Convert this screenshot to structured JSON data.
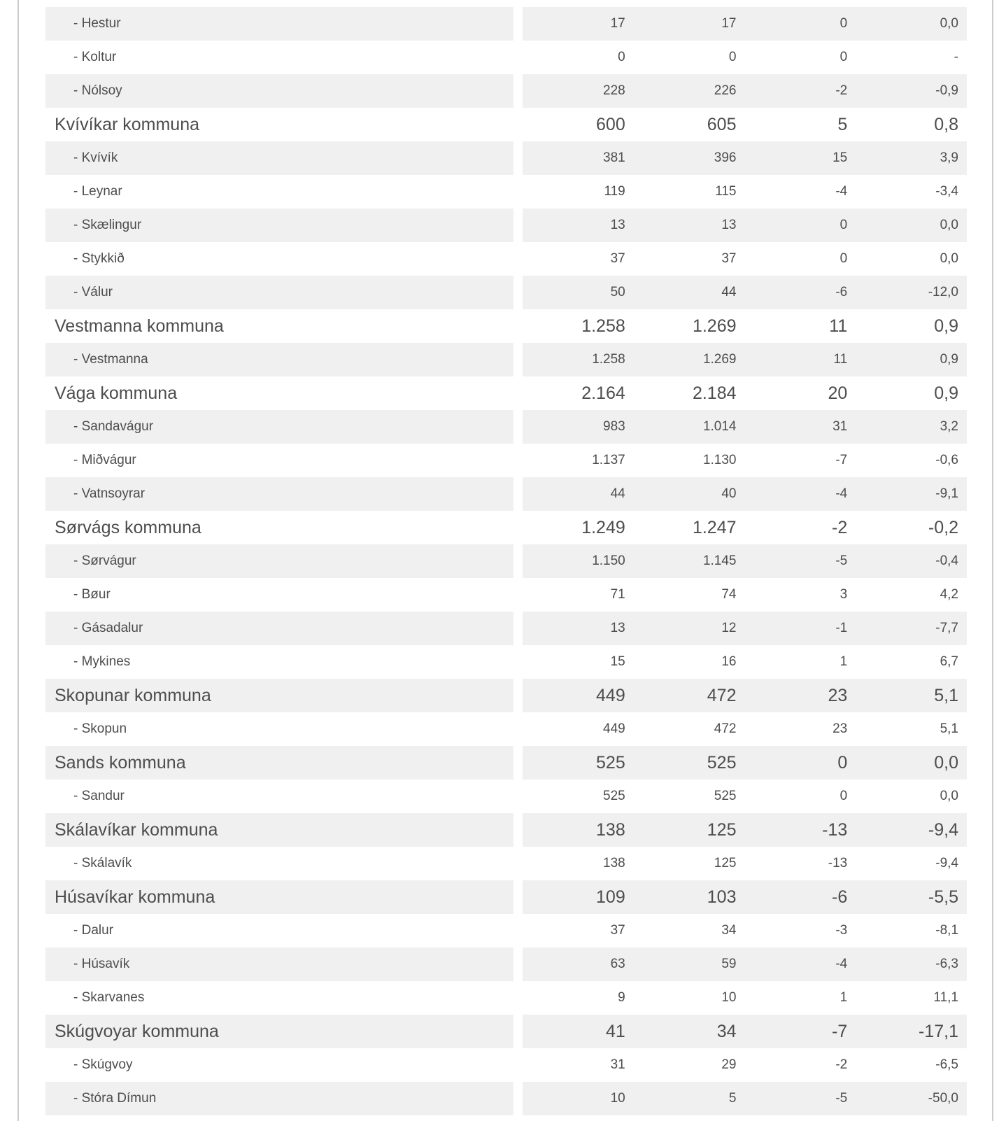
{
  "colors": {
    "row_alt": "#f0f0f0",
    "text": "#4d4d4d",
    "border": "#cccccc"
  },
  "table": {
    "rows": [
      {
        "label": "- Hestur",
        "level": "village",
        "values": [
          "17",
          "17",
          "0",
          "0,0"
        ]
      },
      {
        "label": "- Koltur",
        "level": "village",
        "values": [
          "0",
          "0",
          "0",
          "-"
        ]
      },
      {
        "label": "- Nólsoy",
        "level": "village",
        "values": [
          "228",
          "226",
          "-2",
          "-0,9"
        ]
      },
      {
        "label": "Kvívíkar kommuna",
        "level": "municipality",
        "values": [
          "600",
          "605",
          "5",
          "0,8"
        ]
      },
      {
        "label": "- Kvívík",
        "level": "village",
        "values": [
          "381",
          "396",
          "15",
          "3,9"
        ]
      },
      {
        "label": "- Leynar",
        "level": "village",
        "values": [
          "119",
          "115",
          "-4",
          "-3,4"
        ]
      },
      {
        "label": "- Skælingur",
        "level": "village",
        "values": [
          "13",
          "13",
          "0",
          "0,0"
        ]
      },
      {
        "label": "- Stykkið",
        "level": "village",
        "values": [
          "37",
          "37",
          "0",
          "0,0"
        ]
      },
      {
        "label": "- Válur",
        "level": "village",
        "values": [
          "50",
          "44",
          "-6",
          "-12,0"
        ]
      },
      {
        "label": "Vestmanna kommuna",
        "level": "municipality",
        "values": [
          "1.258",
          "1.269",
          "11",
          "0,9"
        ]
      },
      {
        "label": "- Vestmanna",
        "level": "village",
        "values": [
          "1.258",
          "1.269",
          "11",
          "0,9"
        ]
      },
      {
        "label": "Vága kommuna",
        "level": "municipality",
        "values": [
          "2.164",
          "2.184",
          "20",
          "0,9"
        ]
      },
      {
        "label": "- Sandavágur",
        "level": "village",
        "values": [
          "983",
          "1.014",
          "31",
          "3,2"
        ]
      },
      {
        "label": "- Miðvágur",
        "level": "village",
        "values": [
          "1.137",
          "1.130",
          "-7",
          "-0,6"
        ]
      },
      {
        "label": "- Vatnsoyrar",
        "level": "village",
        "values": [
          "44",
          "40",
          "-4",
          "-9,1"
        ]
      },
      {
        "label": "Sørvágs kommuna",
        "level": "municipality",
        "values": [
          "1.249",
          "1.247",
          "-2",
          "-0,2"
        ]
      },
      {
        "label": "- Sørvágur",
        "level": "village",
        "values": [
          "1.150",
          "1.145",
          "-5",
          "-0,4"
        ]
      },
      {
        "label": "- Bøur",
        "level": "village",
        "values": [
          "71",
          "74",
          "3",
          "4,2"
        ]
      },
      {
        "label": "- Gásadalur",
        "level": "village",
        "values": [
          "13",
          "12",
          "-1",
          "-7,7"
        ]
      },
      {
        "label": "- Mykines",
        "level": "village",
        "values": [
          "15",
          "16",
          "1",
          "6,7"
        ]
      },
      {
        "label": "Skopunar kommuna",
        "level": "municipality",
        "values": [
          "449",
          "472",
          "23",
          "5,1"
        ]
      },
      {
        "label": "- Skopun",
        "level": "village",
        "values": [
          "449",
          "472",
          "23",
          "5,1"
        ]
      },
      {
        "label": "Sands kommuna",
        "level": "municipality",
        "values": [
          "525",
          "525",
          "0",
          "0,0"
        ]
      },
      {
        "label": "- Sandur",
        "level": "village",
        "values": [
          "525",
          "525",
          "0",
          "0,0"
        ]
      },
      {
        "label": "Skálavíkar kommuna",
        "level": "municipality",
        "values": [
          "138",
          "125",
          "-13",
          "-9,4"
        ]
      },
      {
        "label": "- Skálavík",
        "level": "village",
        "values": [
          "138",
          "125",
          "-13",
          "-9,4"
        ]
      },
      {
        "label": "Húsavíkar kommuna",
        "level": "municipality",
        "values": [
          "109",
          "103",
          "-6",
          "-5,5"
        ]
      },
      {
        "label": "- Dalur",
        "level": "village",
        "values": [
          "37",
          "34",
          "-3",
          "-8,1"
        ]
      },
      {
        "label": "- Húsavík",
        "level": "village",
        "values": [
          "63",
          "59",
          "-4",
          "-6,3"
        ]
      },
      {
        "label": "- Skarvanes",
        "level": "village",
        "values": [
          "9",
          "10",
          "1",
          "11,1"
        ]
      },
      {
        "label": "Skúgvoyar kommuna",
        "level": "municipality",
        "values": [
          "41",
          "34",
          "-7",
          "-17,1"
        ]
      },
      {
        "label": "- Skúgvoy",
        "level": "village",
        "values": [
          "31",
          "29",
          "-2",
          "-6,5"
        ]
      },
      {
        "label": "- Stóra Dímun",
        "level": "village",
        "values": [
          "10",
          "5",
          "-5",
          "-50,0"
        ]
      }
    ]
  }
}
